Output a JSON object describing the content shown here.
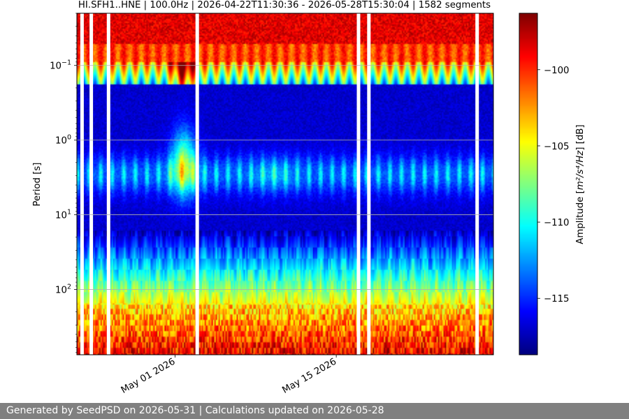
{
  "chart_data": {
    "type": "heatmap",
    "title": "HI.SFH1..HNE | 100.0Hz | 2026-04-22T11:30:36 - 2026-05-28T15:30:04 | 1582 segments",
    "xlabel": "",
    "ylabel": "Period [s]",
    "x_range": [
      "2026-04-22T11:30:36",
      "2026-05-28T15:30:04"
    ],
    "x_ticks": [
      {
        "date": "2026-05-01",
        "label": "May 01 2026"
      },
      {
        "date": "2026-05-15",
        "label": "May 15 2026"
      }
    ],
    "y_scale": "log",
    "y_inverted": true,
    "y_range_s": [
      0.02,
      750
    ],
    "y_ticks": [
      {
        "value": 0.1,
        "base": "10",
        "exp": "−1"
      },
      {
        "value": 1,
        "base": "10",
        "exp": "0"
      },
      {
        "value": 10,
        "base": "10",
        "exp": "1"
      },
      {
        "value": 100,
        "base": "10",
        "exp": "2"
      }
    ],
    "grid": true,
    "segments": 1582,
    "colorbar": {
      "label_main": "Amplitude [",
      "label_math": "m²/s⁴/Hz",
      "label_end": "] [dB]",
      "range_db": [
        -118.7,
        -96.3
      ],
      "ticks": [
        {
          "value": -100,
          "label": "−100"
        },
        {
          "value": -105,
          "label": "−105"
        },
        {
          "value": -110,
          "label": "−110"
        },
        {
          "value": -115,
          "label": "−115"
        }
      ],
      "colormap": "jet"
    },
    "data_gaps_days_since_start": [
      0.3,
      1.1,
      2.6,
      10.3,
      24.3,
      25.2,
      34.6
    ]
  },
  "footer": {
    "text": "Generated by SeedPSD on 2026-05-31 | Calculations updated on 2026-05-28"
  }
}
